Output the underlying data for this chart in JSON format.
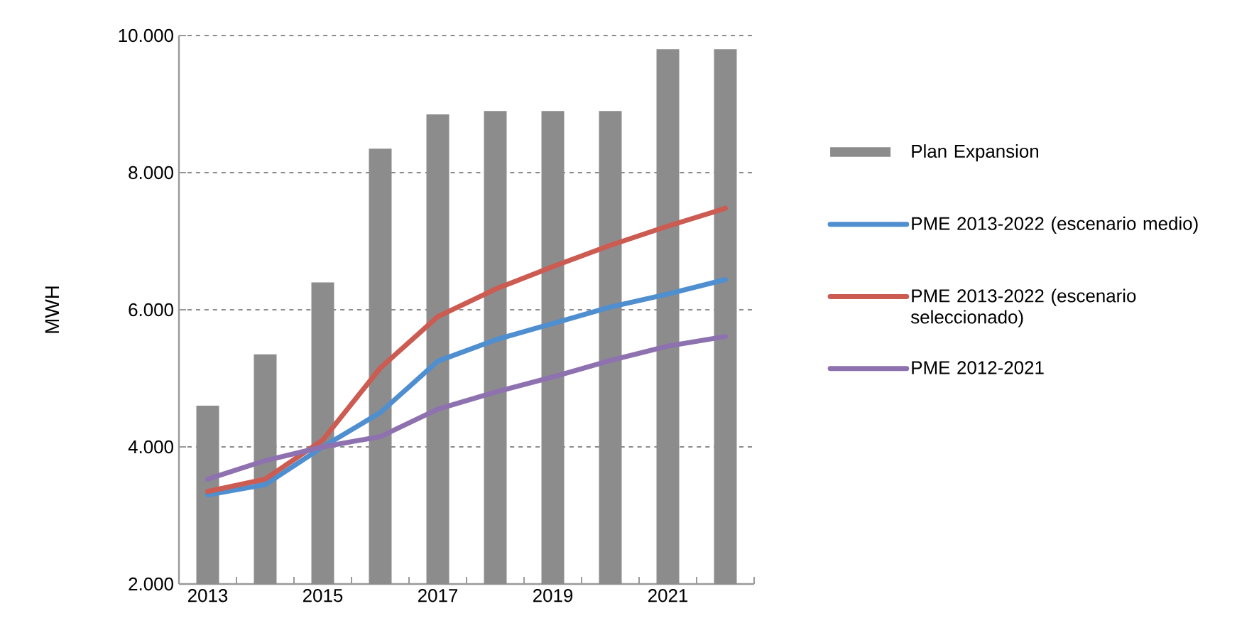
{
  "chart_data": {
    "type": "bar",
    "ylabel": "MWH",
    "categories": [
      "2013",
      null,
      "2015",
      null,
      "2017",
      null,
      "2019",
      null,
      "2021",
      null
    ],
    "series": [
      {
        "name": "Plan Expansion",
        "color": "#8c8c8c",
        "values": [
          4600,
          5350,
          6400,
          8350,
          8850,
          8900,
          8900,
          8900,
          9800,
          9800
        ]
      },
      {
        "name": "PME 2013-2022 (escenario medio)",
        "type": "line",
        "color": "#4f8fcf",
        "values": [
          3300,
          3450,
          4000,
          4500,
          5250,
          5560,
          5800,
          6040,
          6230,
          6440
        ]
      },
      {
        "name": "PME 2013-2022 (escenario seleccionado)",
        "type": "line",
        "color": "#cc5b52",
        "values": [
          3350,
          3530,
          4100,
          5150,
          5900,
          6300,
          6630,
          6940,
          7220,
          7480
        ]
      },
      {
        "name": "PME 2012-2021",
        "type": "line",
        "color": "#8e72b0",
        "values": [
          3530,
          3800,
          4000,
          4150,
          4550,
          4800,
          5020,
          5260,
          5470,
          5610
        ]
      }
    ],
    "ylim": [
      2000,
      10000
    ],
    "yticks": [
      {
        "value": 2000,
        "label": "2.000"
      },
      {
        "value": 4000,
        "label": "4.000"
      },
      {
        "value": 6000,
        "label": "6.000"
      },
      {
        "value": 8000,
        "label": "8.000"
      },
      {
        "value": 10000,
        "label": "10.000"
      }
    ],
    "grid": "y",
    "legend": "right"
  }
}
